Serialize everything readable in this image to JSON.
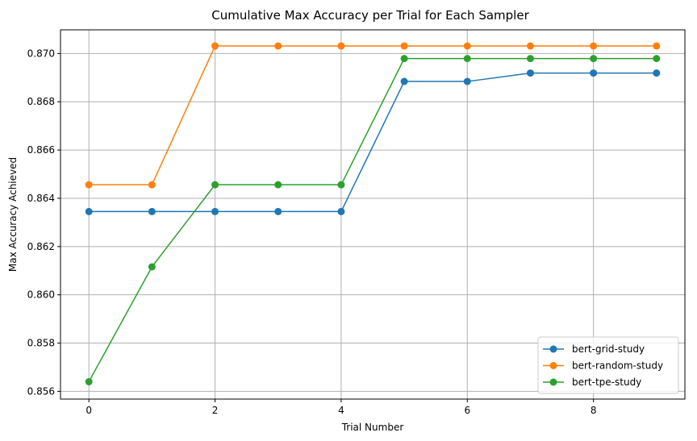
{
  "chart_data": {
    "type": "line",
    "title": "Cumulative Max Accuracy per Trial for Each Sampler",
    "xlabel": "Trial Number",
    "ylabel": "Max Accuracy Achieved",
    "xlim": [
      -0.45,
      9.45
    ],
    "ylim": [
      0.85568,
      0.87098
    ],
    "xticks": [
      0,
      2,
      4,
      6,
      8
    ],
    "yticks": [
      0.856,
      0.858,
      0.86,
      0.862,
      0.864,
      0.866,
      0.868,
      0.87
    ],
    "xtick_labels": [
      "0",
      "2",
      "4",
      "6",
      "8"
    ],
    "ytick_labels": [
      "0.856",
      "0.858",
      "0.860",
      "0.862",
      "0.864",
      "0.866",
      "0.868",
      "0.870"
    ],
    "grid": true,
    "legend_position": "lower-right",
    "x": [
      0,
      1,
      2,
      3,
      4,
      5,
      6,
      7,
      8,
      9
    ],
    "series": [
      {
        "name": "bert-grid-study",
        "color": "#1f77b4",
        "values": [
          0.86345,
          0.86345,
          0.86345,
          0.86345,
          0.86345,
          0.86884,
          0.86884,
          0.86919,
          0.86919,
          0.86919
        ]
      },
      {
        "name": "bert-random-study",
        "color": "#ff7f0e",
        "values": [
          0.86456,
          0.86456,
          0.87031,
          0.87031,
          0.87031,
          0.87031,
          0.87031,
          0.87031,
          0.87031,
          0.87031
        ]
      },
      {
        "name": "bert-tpe-study",
        "color": "#2ca02c",
        "values": [
          0.8564,
          0.86116,
          0.86456,
          0.86456,
          0.86456,
          0.86979,
          0.86979,
          0.86979,
          0.86979,
          0.86979
        ]
      }
    ]
  }
}
